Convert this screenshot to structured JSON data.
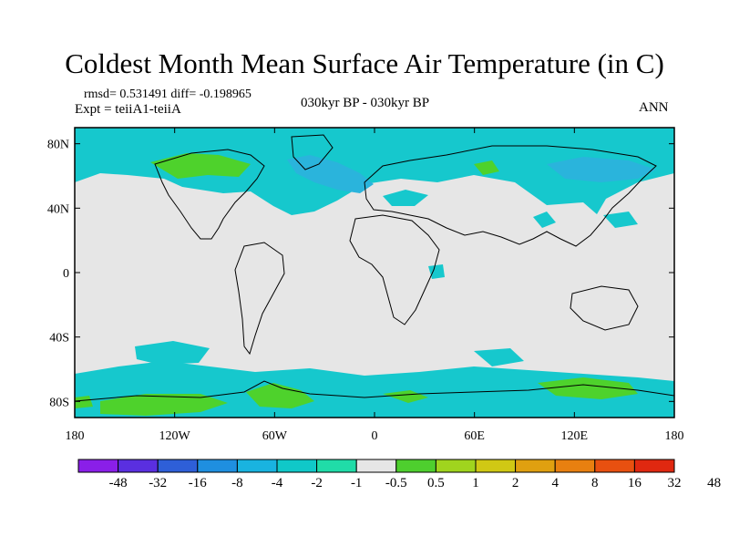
{
  "title": "Coldest Month Mean Surface Air Temperature (in C)",
  "stats": "rmsd= 0.531491  diff= -0.198965",
  "experiment": "Expt = teiiA1-teiiA",
  "period": "030kyr BP - 030kyr BP",
  "season": "ANN",
  "map": {
    "lon_range": [
      -180,
      180
    ],
    "lat_range": [
      -90,
      90
    ],
    "lat_ticks": [
      {
        "value": 80,
        "label": "80N"
      },
      {
        "value": 40,
        "label": "40N"
      },
      {
        "value": 0,
        "label": "0"
      },
      {
        "value": -40,
        "label": "40S"
      },
      {
        "value": -80,
        "label": "80S"
      }
    ],
    "lon_ticks": [
      {
        "value": -180,
        "label": "180"
      },
      {
        "value": -120,
        "label": "120W"
      },
      {
        "value": -60,
        "label": "60W"
      },
      {
        "value": 0,
        "label": "0"
      },
      {
        "value": 60,
        "label": "60E"
      },
      {
        "value": 120,
        "label": "120E"
      },
      {
        "value": 180,
        "label": "180"
      }
    ]
  },
  "colorbar": {
    "colors": [
      "#8a1fe8",
      "#5a2fe0",
      "#2e5fd8",
      "#1f8fe0",
      "#19b3e0",
      "#10c8c8",
      "#20dca8",
      "#e6e6e6",
      "#4ecf2e",
      "#a0d41e",
      "#d0c814",
      "#e0a010",
      "#e88010",
      "#e85010",
      "#e02810"
    ],
    "labels": [
      "-48",
      "-32",
      "-16",
      "-8",
      "-4",
      "-2",
      "-1",
      "-0.5",
      "0.5",
      "1",
      "2",
      "4",
      "8",
      "16",
      "32",
      "48"
    ]
  },
  "colors": {
    "neutral": "#e6e6e6",
    "cool": "#16c8cd",
    "cooler": "#2ab4dc",
    "warm": "#4ed22c"
  }
}
